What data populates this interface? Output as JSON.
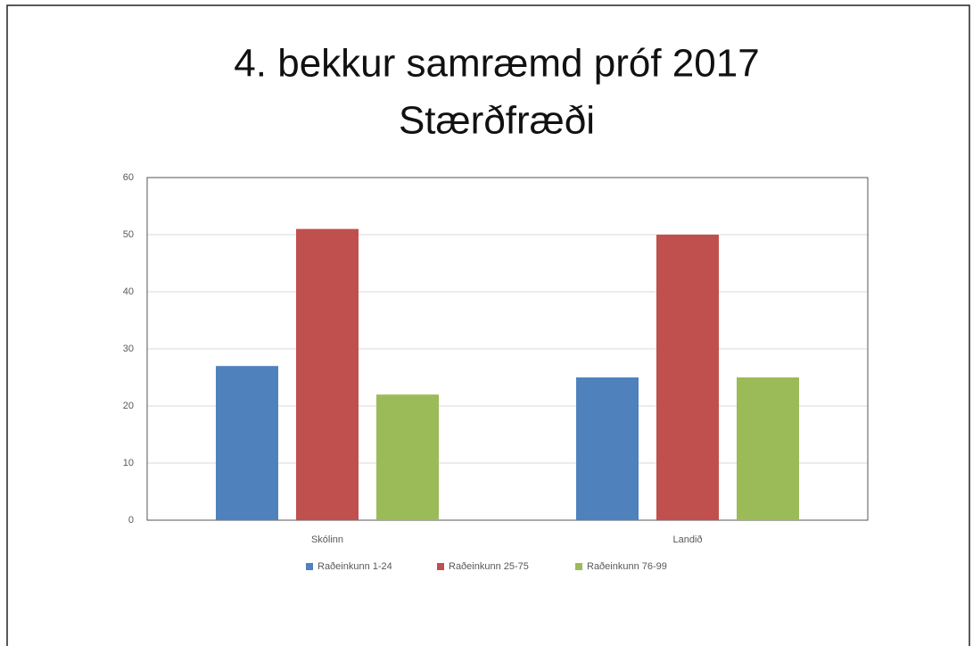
{
  "chart_data": {
    "type": "bar",
    "title": [
      "4. bekkur samræmd próf 2017",
      "Stærðfræði"
    ],
    "categories": [
      "Skólinn",
      "Landið"
    ],
    "series": [
      {
        "name": "Raðeinkunn 1-24",
        "color": "#4f81bd",
        "values": [
          27,
          25
        ]
      },
      {
        "name": "Raðeinkunn 25-75",
        "color": "#c0504d",
        "values": [
          51,
          50
        ]
      },
      {
        "name": "Raðeinkunn 76-99",
        "color": "#9bbb59",
        "values": [
          22,
          25
        ]
      }
    ],
    "ylim": [
      0,
      60
    ],
    "yticks": [
      0,
      10,
      20,
      30,
      40,
      50,
      60
    ],
    "grid": true,
    "legend": "bottom"
  }
}
